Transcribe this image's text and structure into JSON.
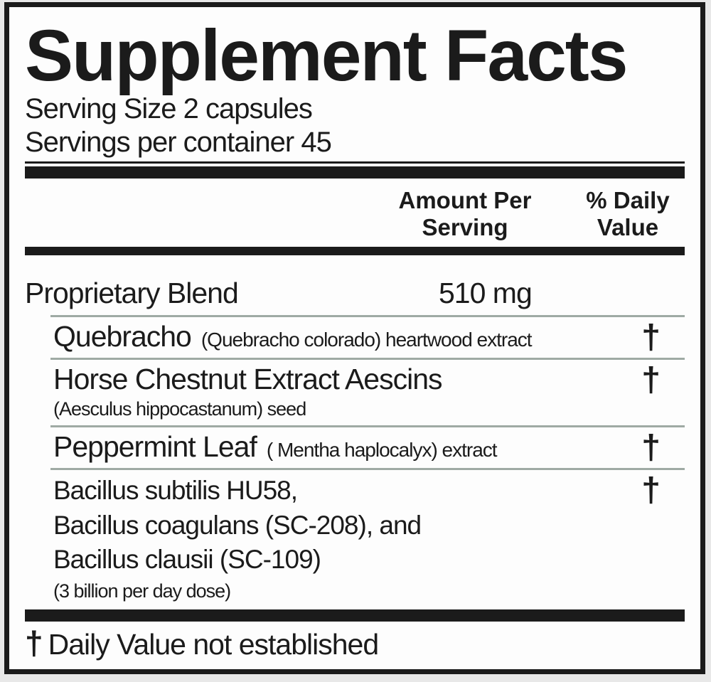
{
  "colors": {
    "ink": "#1b1b1b",
    "label_background": "#fdfdfd",
    "page_background": "#e8e8e8",
    "separator_line": "#9faaa4"
  },
  "header": {
    "title": "Supplement Facts",
    "serving_size": "Serving Size 2 capsules",
    "servings_per_container": "Servings per container 45"
  },
  "columns": {
    "amount_per_serving": "Amount Per Serving",
    "percent_daily_value": "% Daily Value"
  },
  "blend": {
    "name": "Proprietary Blend",
    "amount": "510 mg"
  },
  "ingredients": [
    {
      "name": "Quebracho",
      "detail": "(Quebracho colorado) heartwood extract",
      "daily_value": "†"
    },
    {
      "name": "Horse Chestnut Extract Aescins",
      "subtext": "(Aesculus hippocastanum) seed",
      "daily_value": "†"
    },
    {
      "name": "Peppermint Leaf",
      "detail": "( Mentha haplocalyx) extract",
      "daily_value": "†"
    },
    {
      "name_lines": [
        "Bacillus subtilis HU58,",
        "Bacillus coagulans (SC-208), and",
        "Bacillus clausii (SC-109)"
      ],
      "subtext": "(3 billion per day dose)",
      "daily_value": "†"
    }
  ],
  "footnote": {
    "symbol": "†",
    "text": "Daily Value not established"
  }
}
